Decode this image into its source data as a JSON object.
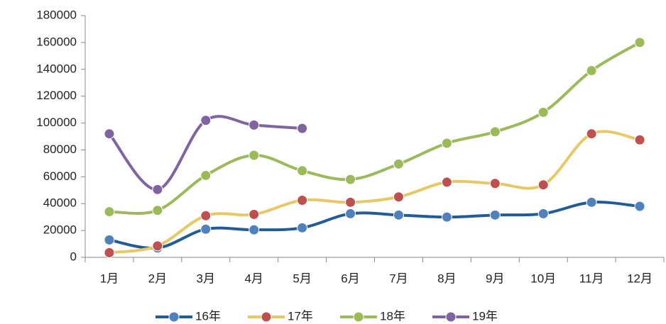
{
  "chart_data": {
    "type": "line",
    "categories": [
      "1月",
      "2月",
      "3月",
      "4月",
      "5月",
      "6月",
      "7月",
      "8月",
      "9月",
      "10月",
      "11月",
      "12月"
    ],
    "series": [
      {
        "name": "16年",
        "color": "#1f5c99",
        "marker_color": "#4f81bd",
        "values": [
          13000,
          7000,
          21000,
          20500,
          22000,
          32500,
          31500,
          30000,
          31500,
          32500,
          41000,
          38000
        ]
      },
      {
        "name": "17年",
        "color": "#e8c864",
        "marker_color": "#c0504d",
        "values": [
          3500,
          8500,
          31000,
          32000,
          42500,
          41000,
          45000,
          56000,
          55000,
          54000,
          92000,
          87500
        ]
      },
      {
        "name": "18年",
        "color": "#9bbb59",
        "marker_color": "#9bbb59",
        "values": [
          34000,
          35000,
          61000,
          76000,
          64500,
          58000,
          69500,
          85000,
          93500,
          108000,
          139000,
          160000
        ]
      },
      {
        "name": "19年",
        "color": "#8064a2",
        "marker_color": "#8064a2",
        "values": [
          92000,
          50500,
          102000,
          98500,
          96000,
          null,
          null,
          null,
          null,
          null,
          null,
          null
        ]
      }
    ],
    "ylim": [
      0,
      180000
    ],
    "yticks": [
      0,
      20000,
      40000,
      60000,
      80000,
      100000,
      120000,
      140000,
      160000,
      180000
    ],
    "smooth": true,
    "legend": "bottom",
    "grid": false
  }
}
